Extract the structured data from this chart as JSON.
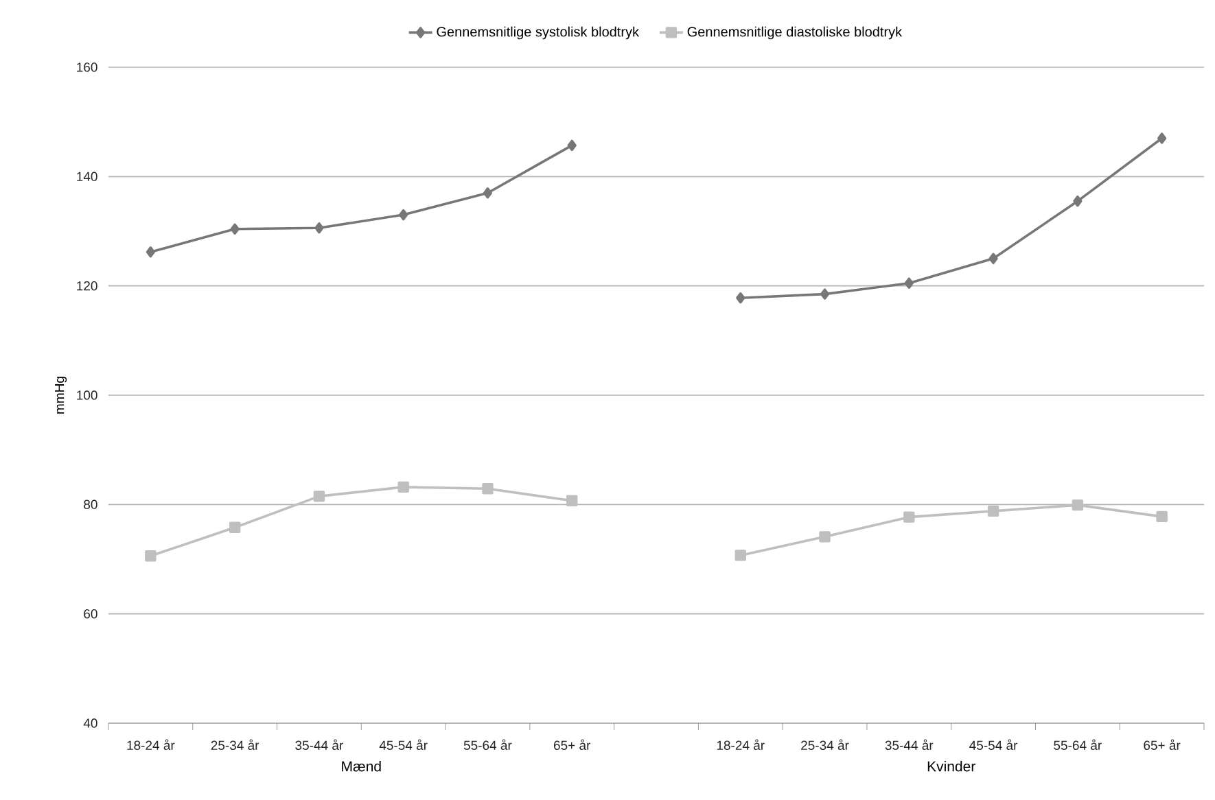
{
  "chart_data": {
    "type": "line",
    "ylabel": "mmHg",
    "categories": [
      "18-24 år",
      "25-34 år",
      "35-44 år",
      "45-54 år",
      "55-64 år",
      "65+ år",
      null,
      "18-24 år",
      "25-34 år",
      "35-44 år",
      "45-54 år",
      "55-64 år",
      "65+ år"
    ],
    "series": [
      {
        "name": "Gennemsnitlige systolisk blodtryk",
        "color": "#777777",
        "marker": "diamond",
        "values": [
          126.2,
          130.4,
          130.6,
          133.0,
          137.0,
          145.7,
          null,
          117.8,
          118.5,
          120.5,
          125.0,
          135.5,
          147.0
        ]
      },
      {
        "name": "Gennemsnitlige diastoliske blodtryk",
        "color": "#bfbfbf",
        "marker": "square",
        "values": [
          70.6,
          75.8,
          81.5,
          83.2,
          82.9,
          80.7,
          null,
          70.7,
          74.1,
          77.7,
          78.8,
          79.9,
          77.8
        ]
      }
    ],
    "ylim": [
      40,
      160
    ],
    "yticks": [
      40,
      60,
      80,
      100,
      120,
      140,
      160
    ],
    "grid": "y",
    "legend": "top",
    "annotations": [
      "Mænd",
      "Kvinder"
    ]
  }
}
